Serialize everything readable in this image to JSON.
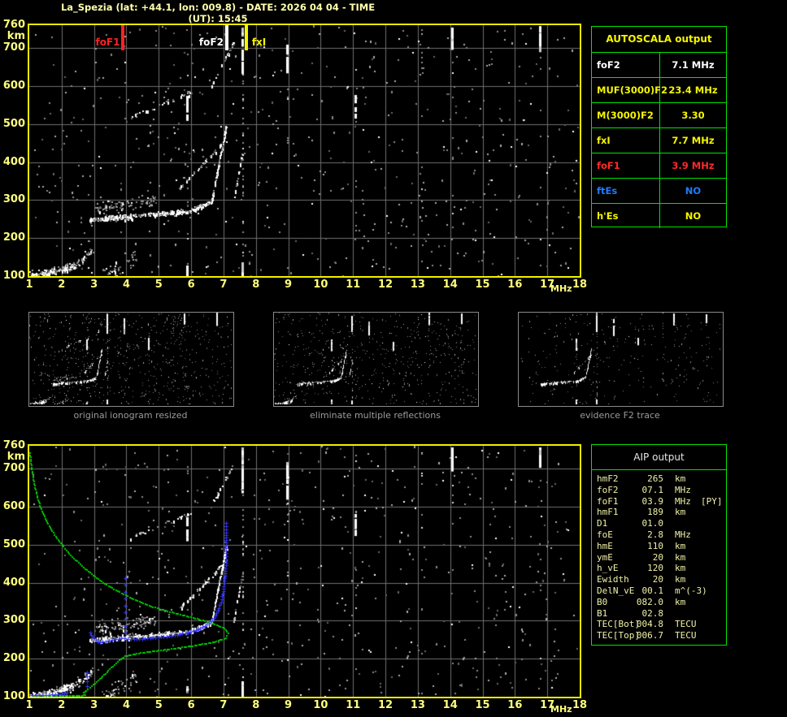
{
  "window": {
    "title": "La_Spezia (lat: +44.1, lon: 009.8) - DATE: 2026 04 04 - TIME (UT): 15:45"
  },
  "colors": {
    "background": "#000000",
    "title_text": "#ffffac",
    "axis_text": "#ffff7d",
    "plot_border": "#f0f000",
    "grid": "#6f6f6f",
    "table_border": "#00e400",
    "autoscala_yellow": "#f5f500",
    "autoscala_white": "#ffffff",
    "autoscala_red": "#ff2a2a",
    "autoscala_blue": "#1e7bff",
    "aip_text": "#f1f1a9",
    "caption_gray": "#9c9c9c",
    "profile_green": "#00cf00",
    "trace_blue": "#3333ff",
    "echo_white": "#ffffff",
    "echo_gray": "#8a8a8a"
  },
  "autoscala_table": {
    "header": "AUTOSCALA output",
    "rows": [
      {
        "label": "foF2",
        "value": "7.1 MHz",
        "color": "#ffffff"
      },
      {
        "label": "MUF(3000)F2",
        "value": "23.4 MHz",
        "color": "#f5f500"
      },
      {
        "label": "M(3000)F2",
        "value": "3.30",
        "color": "#f5f500"
      },
      {
        "label": "fxI",
        "value": "7.7 MHz",
        "color": "#f5f500"
      },
      {
        "label": "foF1",
        "value": "3.9 MHz",
        "color": "#ff2a2a"
      },
      {
        "label": "ftEs",
        "value": "NO",
        "color": "#1e7bff"
      },
      {
        "label": "h'Es",
        "value": "NO",
        "color": "#f5f500"
      }
    ]
  },
  "aip_table": {
    "header": "AIP output",
    "rows": [
      {
        "label": "hmF2",
        "value": "265",
        "unit": "km",
        "extra": ""
      },
      {
        "label": "foF2",
        "value": "07.1",
        "unit": "MHz",
        "extra": ""
      },
      {
        "label": "foF1",
        "value": "03.9",
        "unit": "MHz",
        "extra": "[PY]"
      },
      {
        "label": "hmF1",
        "value": "189",
        "unit": "km",
        "extra": ""
      },
      {
        "label": "D1",
        "value": "01.0",
        "unit": "",
        "extra": ""
      },
      {
        "label": "foE",
        "value": "2.8",
        "unit": "MHz",
        "extra": ""
      },
      {
        "label": "hmE",
        "value": "110",
        "unit": "km",
        "extra": ""
      },
      {
        "label": "ymE",
        "value": "20",
        "unit": "km",
        "extra": ""
      },
      {
        "label": "h_vE",
        "value": "120",
        "unit": "km",
        "extra": ""
      },
      {
        "label": "Ewidth",
        "value": "20",
        "unit": "km",
        "extra": ""
      },
      {
        "label": "DelN_vE",
        "value": "00.1",
        "unit": "m^(-3)",
        "extra": ""
      },
      {
        "label": "B0",
        "value": "082.0",
        "unit": "km",
        "extra": ""
      },
      {
        "label": "B1",
        "value": "02.8",
        "unit": "",
        "extra": ""
      },
      {
        "label": "TEC[Bot]",
        "value": "004.8",
        "unit": "TECU",
        "extra": ""
      },
      {
        "label": "TEC[Top]",
        "value": "006.7",
        "unit": "TECU",
        "extra": ""
      }
    ]
  },
  "thumbnails": [
    {
      "caption": "original ionogram resized"
    },
    {
      "caption": "eliminate multiple reflections"
    },
    {
      "caption": "evidence F2 trace"
    }
  ],
  "chart_data": [
    {
      "id": "scaled_ionogram",
      "type": "scatter",
      "xlabel": "MHz",
      "ylabel": "km",
      "xlim": [
        1,
        18
      ],
      "ylim": [
        100,
        760
      ],
      "x_ticks": [
        1,
        2,
        3,
        4,
        5,
        6,
        7,
        8,
        9,
        10,
        11,
        12,
        13,
        14,
        15,
        16,
        17,
        18
      ],
      "y_ticks": [
        760,
        700,
        600,
        500,
        400,
        300,
        200,
        100
      ],
      "grid": true,
      "markers": [
        {
          "label": "foF1",
          "freq_mhz": 3.9,
          "color": "#ff2222"
        },
        {
          "label": "foF2",
          "freq_mhz": 7.1,
          "color": "#ffffff"
        },
        {
          "label": "fxI",
          "freq_mhz": 7.7,
          "color": "#f5f500"
        }
      ],
      "echo_bands": [
        {
          "name": "E-trace-dense",
          "f1": 1.0,
          "km1": 100,
          "f2": 2.35,
          "km2": 128,
          "spread": 9,
          "n": 150,
          "white": 0.55
        },
        {
          "name": "E-trace-tail",
          "f1": 2.35,
          "km1": 128,
          "f2": 2.95,
          "km2": 170,
          "spread": 10,
          "n": 35,
          "white": 0.3
        },
        {
          "name": "E-clutter",
          "f1": 3.2,
          "km1": 100,
          "f2": 4.3,
          "km2": 150,
          "spread": 22,
          "n": 45,
          "white": 0.25
        },
        {
          "name": "F-flat-1",
          "f1": 2.85,
          "km1": 250,
          "f2": 4.3,
          "km2": 260,
          "spread": 6,
          "n": 130,
          "white": 0.6
        },
        {
          "name": "F-clutter",
          "f1": 3.0,
          "km1": 278,
          "f2": 4.9,
          "km2": 300,
          "spread": 14,
          "n": 90,
          "white": 0.15
        },
        {
          "name": "F-flat-2",
          "f1": 4.3,
          "km1": 260,
          "f2": 5.95,
          "km2": 273,
          "spread": 5,
          "n": 110,
          "white": 0.6
        },
        {
          "name": "F-knee",
          "f1": 5.95,
          "km1": 273,
          "f2": 6.62,
          "km2": 298,
          "spread": 5,
          "n": 70,
          "white": 0.65
        },
        {
          "name": "F-steep-o",
          "f1": 6.62,
          "km1": 298,
          "f2": 7.08,
          "km2": 500,
          "spread": 4,
          "n": 110,
          "white": 0.7
        },
        {
          "name": "F-diag-x",
          "f1": 5.6,
          "km1": 330,
          "f2": 7.1,
          "km2": 462,
          "spread": 4,
          "n": 45,
          "white": 0.55
        },
        {
          "name": "F-steep-x",
          "f1": 7.3,
          "km1": 300,
          "f2": 7.58,
          "km2": 430,
          "spread": 4,
          "n": 25,
          "white": 0.5
        },
        {
          "name": "hop2-flat",
          "f1": 4.1,
          "km1": 520,
          "f2": 6.0,
          "km2": 585,
          "spread": 6,
          "n": 30,
          "white": 0.5
        },
        {
          "name": "hop2-steep",
          "f1": 6.6,
          "km1": 600,
          "f2": 7.3,
          "km2": 715,
          "spread": 5,
          "n": 22,
          "white": 0.6
        }
      ],
      "rfi_strips": [
        {
          "f": 5.86,
          "segments": [
            [
              100,
              135,
              0.5
            ],
            [
              515,
              580,
              0.5
            ],
            [
              100,
              760,
              0.06
            ]
          ]
        },
        {
          "f": 7.58,
          "segments": [
            [
              100,
              140,
              0.9
            ],
            [
              640,
              760,
              0.85
            ],
            [
              140,
              640,
              0.25
            ]
          ]
        },
        {
          "f": 8.97,
          "segments": [
            [
              630,
              722,
              0.55
            ],
            [
              100,
              630,
              0.05
            ]
          ]
        },
        {
          "f": 11.07,
          "segments": [
            [
              528,
              585,
              0.6
            ],
            [
              100,
              760,
              0.05
            ]
          ]
        },
        {
          "f": 13.1,
          "segments": [
            [
              640,
              760,
              0.18
            ],
            [
              100,
              640,
              0.04
            ]
          ]
        },
        {
          "f": 14.07,
          "segments": [
            [
              705,
              760,
              0.8
            ],
            [
              100,
              700,
              0.04
            ]
          ]
        },
        {
          "f": 16.78,
          "segments": [
            [
              700,
              760,
              0.8
            ],
            [
              100,
              700,
              0.04
            ]
          ]
        }
      ],
      "noise": {
        "gray": 540,
        "white": 58
      }
    },
    {
      "id": "original_ionogram_resized",
      "type": "scatter"
    },
    {
      "id": "eliminate_multiple_reflections",
      "type": "scatter"
    },
    {
      "id": "evidence_F2_trace",
      "type": "scatter"
    },
    {
      "id": "profile_ionogram",
      "type": "scatter",
      "xlabel": "MHz",
      "ylabel": "km",
      "xlim": [
        1,
        18
      ],
      "ylim": [
        100,
        760
      ],
      "x_ticks": [
        1,
        2,
        3,
        4,
        5,
        6,
        7,
        8,
        9,
        10,
        11,
        12,
        13,
        14,
        15,
        16,
        17,
        18
      ],
      "y_ticks": [
        760,
        700,
        600,
        500,
        400,
        300,
        200,
        100
      ],
      "grid": true,
      "profile_green_mhz_km": [
        [
          1.0,
          742
        ],
        [
          1.05,
          705
        ],
        [
          1.13,
          662
        ],
        [
          1.25,
          620
        ],
        [
          1.42,
          580
        ],
        [
          1.65,
          542
        ],
        [
          1.95,
          505
        ],
        [
          2.3,
          470
        ],
        [
          2.7,
          438
        ],
        [
          3.15,
          408
        ],
        [
          3.65,
          382
        ],
        [
          4.2,
          358
        ],
        [
          4.8,
          338
        ],
        [
          5.45,
          322
        ],
        [
          6.1,
          308
        ],
        [
          6.65,
          295
        ],
        [
          7.0,
          282
        ],
        [
          7.12,
          268
        ],
        [
          7.05,
          256
        ],
        [
          6.7,
          246
        ],
        [
          6.15,
          237
        ],
        [
          5.5,
          229
        ],
        [
          4.85,
          222
        ],
        [
          4.3,
          215
        ],
        [
          3.95,
          208
        ],
        [
          3.75,
          198
        ],
        [
          3.6,
          186
        ],
        [
          3.42,
          170
        ],
        [
          3.2,
          152
        ],
        [
          3.0,
          137
        ],
        [
          2.85,
          126
        ],
        [
          2.73,
          118
        ],
        [
          2.66,
          112
        ],
        [
          2.72,
          107
        ],
        [
          2.6,
          104
        ],
        [
          2.3,
          104
        ],
        [
          1.9,
          104
        ],
        [
          1.5,
          103
        ],
        [
          1.1,
          103
        ]
      ],
      "restored_trace_blue_mhz_km": [
        [
          2.88,
          268
        ],
        [
          2.95,
          258
        ],
        [
          3.05,
          249
        ],
        [
          3.18,
          243
        ],
        [
          3.35,
          246
        ],
        [
          3.55,
          250
        ],
        [
          3.75,
          252
        ],
        [
          3.95,
          254
        ],
        [
          4.15,
          251
        ],
        [
          4.4,
          252
        ],
        [
          4.65,
          254
        ],
        [
          4.9,
          256
        ],
        [
          5.15,
          258
        ],
        [
          5.4,
          261
        ],
        [
          5.65,
          264
        ],
        [
          5.9,
          269
        ],
        [
          6.15,
          275
        ],
        [
          6.35,
          283
        ],
        [
          6.55,
          294
        ],
        [
          6.7,
          308
        ],
        [
          6.82,
          326
        ],
        [
          6.92,
          348
        ],
        [
          6.98,
          372
        ],
        [
          7.02,
          398
        ],
        [
          7.05,
          425
        ],
        [
          7.07,
          452
        ],
        [
          7.08,
          478
        ],
        [
          7.08,
          505
        ],
        [
          7.08,
          532
        ],
        [
          7.08,
          558
        ]
      ],
      "restored_trace_E_blue_mhz_km": [
        [
          1.0,
          104
        ],
        [
          1.2,
          104
        ],
        [
          1.4,
          105
        ],
        [
          1.6,
          105
        ],
        [
          1.8,
          106
        ],
        [
          2.0,
          108
        ],
        [
          2.15,
          110
        ]
      ],
      "blue_cusps": [
        {
          "f": 3.97,
          "km1": 268,
          "km2": 412,
          "n": 9
        },
        {
          "f": 2.78,
          "km1": 128,
          "km2": 165,
          "n": 4
        }
      ]
    }
  ]
}
